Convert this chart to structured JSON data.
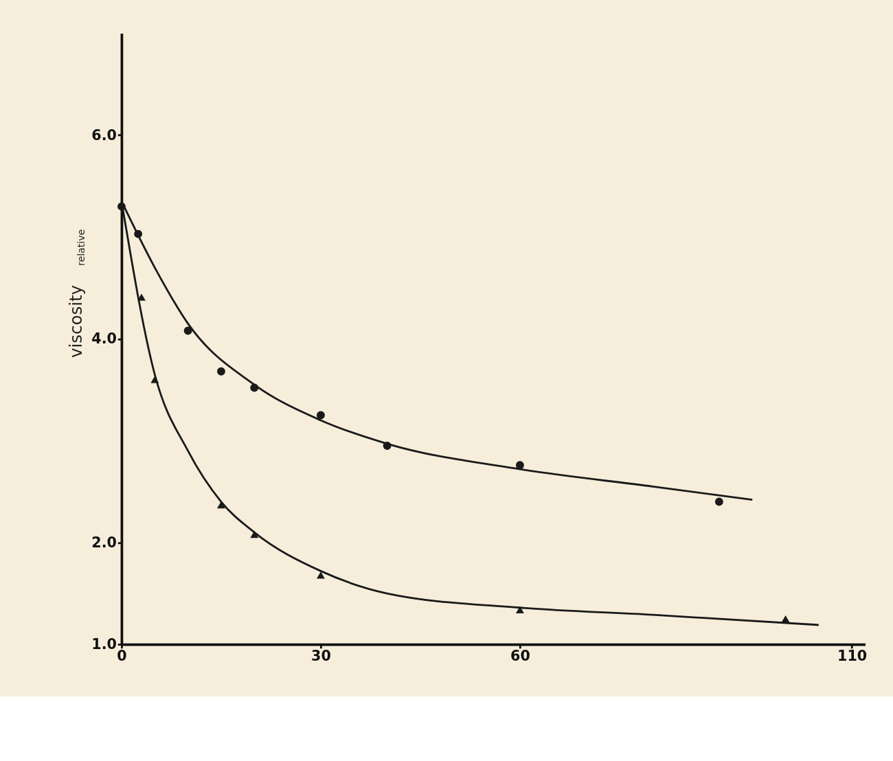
{
  "chart_data": {
    "type": "scatter",
    "ylabel": "viscosity$_{relative}$",
    "xlim": [
      0,
      112
    ],
    "xticks": [
      0,
      30,
      60,
      110
    ],
    "ylim": [
      1,
      7
    ],
    "yticks": [
      {
        "value": 1,
        "label": "1.0"
      },
      {
        "value": 2,
        "label": "2.0"
      },
      {
        "value": 4,
        "label": "4.0"
      },
      {
        "value": 6,
        "label": "6.0"
      }
    ],
    "grid": false,
    "series": [
      {
        "marker": "circle",
        "color": "#1a1a1a",
        "x": [
          0,
          2.5,
          10,
          15,
          20,
          30,
          40,
          60,
          90
        ],
        "values": [
          5.3,
          5.03,
          4.08,
          3.68,
          3.52,
          3.25,
          2.95,
          2.76,
          2.4
        ]
      },
      {
        "marker": "triangle",
        "color": "#1a1a1a",
        "x": [
          3,
          5,
          15,
          20,
          30,
          60,
          100
        ],
        "values": [
          4.41,
          3.6,
          2.37,
          2.08,
          1.68,
          1.34,
          1.25
        ]
      },
      {
        "type": "line",
        "line_style": "solid",
        "color": "#1a1a1a",
        "x": [
          0,
          5,
          10,
          20,
          30,
          40,
          60,
          80,
          95
        ],
        "values": [
          5.35,
          4.7,
          4.15,
          3.55,
          3.2,
          2.97,
          2.72,
          2.55,
          2.42
        ]
      },
      {
        "type": "line",
        "line_style": "solid",
        "color": "#1a1a1a",
        "x": [
          0,
          5,
          10,
          15,
          20,
          30,
          40,
          60,
          80,
          105
        ],
        "values": [
          5.35,
          3.65,
          2.9,
          2.4,
          2.1,
          1.72,
          1.5,
          1.36,
          1.29,
          1.19
        ]
      }
    ]
  }
}
